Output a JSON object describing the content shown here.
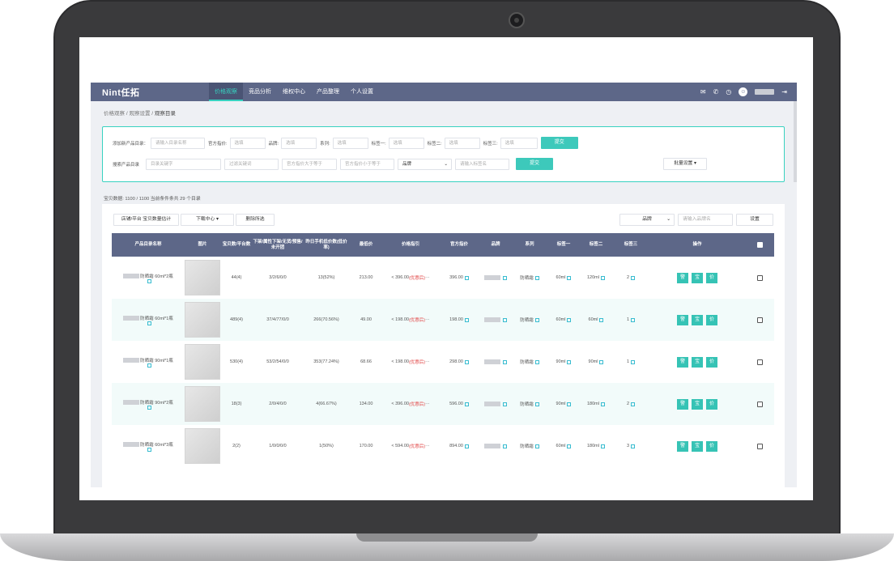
{
  "app": {
    "logo": "Nint任拓",
    "nav": [
      "价格观察",
      "竞品分析",
      "维权中心",
      "产品整理",
      "个人设置"
    ],
    "active_nav": 0
  },
  "breadcrumb": [
    "价格观察",
    "观察设置",
    "观察目录"
  ],
  "search_panel": {
    "row1": {
      "label": "添加新产品目录：",
      "name_placeholder": "请输入目录名称",
      "price_label": "官方指价:",
      "price_placeholder": "选填",
      "brand_label": "品牌:",
      "brand_placeholder": "选填",
      "series_label": "系列:",
      "series_placeholder": "选填",
      "tag1_label": "标签一:",
      "tag1_placeholder": "选填",
      "tag2_label": "标签二:",
      "tag2_placeholder": "选填",
      "tag3_label": "标签三:",
      "tag3_placeholder": "选填",
      "submit": "提交"
    },
    "row2": {
      "label": "搜索产品目录",
      "keyword_placeholder": "目录关键字",
      "filter_placeholder": "过滤关键词",
      "min_placeholder": "官方指价大于等于",
      "max_placeholder": "官方指价小于等于",
      "brand_select": "品牌",
      "tag_placeholder": "请输入标签名",
      "submit": "提交",
      "batch": "批量设置"
    }
  },
  "stats": "宝贝数据: 1100 / 1100 当前条件条共 29 个目录",
  "toolbar": {
    "btn1": "店铺/平台 宝贝数量估计",
    "btn2": "下载中心",
    "btn3": "删除所选",
    "brand_select": "品牌",
    "brand_placeholder": "请输入品牌名",
    "settings": "设置"
  },
  "columns": [
    "产品目录名称",
    "图片",
    "宝贝数/平台数",
    "下架/属性下架/无货/预售/未开团",
    "昨日手机低价数(低价率)",
    "最低价",
    "价格指引",
    "官方指价",
    "品牌",
    "系列",
    "标签一",
    "标签二",
    "标签三",
    "操作"
  ],
  "ops": [
    "警",
    "宝",
    "价"
  ],
  "rows": [
    {
      "name": "防晒霜 60ml*2瓶",
      "count": "44(4)",
      "off": "3/2/6/0/0",
      "low": "13(52%)",
      "min": "213.00",
      "guide": "< 396.00",
      "guide_tag": "(优惠后)",
      "official": "396.00",
      "series": "防晒霜",
      "tag1": "60ml",
      "tag2": "120ml",
      "tag3": "2"
    },
    {
      "name": "防晒霜 60ml*1瓶",
      "count": "489(4)",
      "off": "37/4/77/0/0",
      "low": "266(70.56%)",
      "min": "49.00",
      "guide": "< 198.00",
      "guide_tag": "(优惠后)",
      "official": "198.00",
      "series": "防晒霜",
      "tag1": "60ml",
      "tag2": "60ml",
      "tag3": "1"
    },
    {
      "name": "防晒霜 90ml*1瓶",
      "count": "530(4)",
      "off": "53/2/54/0/0",
      "low": "353(77.24%)",
      "min": "68.66",
      "guide": "< 198.00",
      "guide_tag": "(优惠后)",
      "official": "298.00",
      "series": "防晒霜",
      "tag1": "90ml",
      "tag2": "90ml",
      "tag3": "1"
    },
    {
      "name": "防晒霜 90ml*2瓶",
      "count": "18(3)",
      "off": "2/0/4/0/0",
      "low": "4(66.67%)",
      "min": "134.00",
      "guide": "< 396.00",
      "guide_tag": "(优惠后)",
      "official": "596.00",
      "series": "防晒霜",
      "tag1": "90ml",
      "tag2": "180ml",
      "tag3": "2"
    },
    {
      "name": "防晒霜 60ml*3瓶",
      "count": "2(2)",
      "off": "1/0/0/0/0",
      "low": "1(50%)",
      "min": "170.00",
      "guide": "< 594.00",
      "guide_tag": "(优惠后)",
      "official": "894.00",
      "series": "防晒霜",
      "tag1": "60ml",
      "tag2": "180ml",
      "tag3": "3"
    }
  ]
}
